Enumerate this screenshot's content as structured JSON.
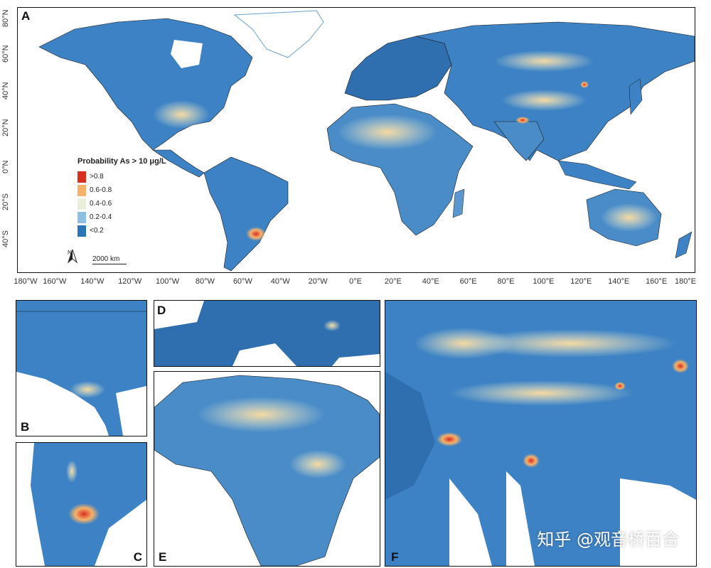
{
  "panels": {
    "A": "A",
    "B": "B",
    "C": "C",
    "D": "D",
    "E": "E",
    "F": "F"
  },
  "legend": {
    "title": "Probability As > 10 μg/L",
    "items": [
      {
        "label": ">0.8",
        "color": "#d7301f"
      },
      {
        "label": "0.6-0.8",
        "color": "#f6b26b"
      },
      {
        "label": "0.4-0.6",
        "color": "#e9efd8"
      },
      {
        "label": "0.2-0.4",
        "color": "#8fbfe0"
      },
      {
        "label": "<0.2",
        "color": "#2b74b8"
      }
    ]
  },
  "scale_bar": "2000 km",
  "north_label": "N",
  "lat_labels": [
    "80°N",
    "60°N",
    "40°N",
    "20°N",
    "0°N",
    "20°S",
    "40°S"
  ],
  "lon_labels": [
    "180°W",
    "160°W",
    "140°W",
    "120°W",
    "100°W",
    "80°W",
    "60°W",
    "40°W",
    "20°W",
    "0°E",
    "20°E",
    "40°E",
    "60°E",
    "80°E",
    "100°E",
    "120°E",
    "140°E",
    "160°E",
    "180°E"
  ],
  "watermark": "知乎 @观音桥百合",
  "colors": {
    "ocean": "#ffffff",
    "land_base": "#3d82c4",
    "border": "#1a1a1a"
  }
}
